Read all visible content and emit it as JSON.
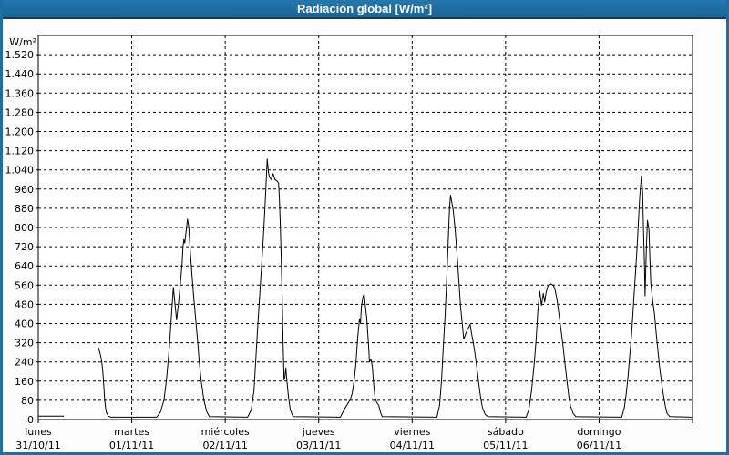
{
  "window": {
    "title": "Radiación global [W/m²]"
  },
  "colors": {
    "titlebar_bg": "#1d6fa3",
    "titlebar_edge": "#103a55",
    "titlebar_text": "#ffffff",
    "frame_border": "#1d6fa3",
    "figure_bg": "#fcfdfc",
    "plot_bg": "#ffffff",
    "line_color": "#000000",
    "grid_color": "#000000",
    "text_color": "#000000"
  },
  "chart_data": {
    "type": "line",
    "title": "Radiación global [W/m²]",
    "ylabel": "W/m²",
    "grid": "dashed",
    "legend": "none",
    "y_axis": {
      "min": 0,
      "max": 1600,
      "tick_step": 80,
      "unit": "W/m²",
      "tick_labels": [
        "0",
        "80",
        "160",
        "240",
        "320",
        "400",
        "480",
        "560",
        "640",
        "720",
        "800",
        "880",
        "960",
        "1.040",
        "1.120",
        "1.200",
        "1.280",
        "1.360",
        "1.440",
        "1.520"
      ]
    },
    "x_axis": {
      "span_days": 7,
      "days": [
        {
          "label": "lunes",
          "date": "31/10/11"
        },
        {
          "label": "martes",
          "date": "01/11/11"
        },
        {
          "label": "miércoles",
          "date": "02/11/11"
        },
        {
          "label": "jueves",
          "date": "03/11/11"
        },
        {
          "label": "viernes",
          "date": "04/11/11"
        },
        {
          "label": "sábado",
          "date": "05/11/11"
        },
        {
          "label": "domingo",
          "date": "06/11/11"
        }
      ]
    },
    "series": [
      {
        "name": "Radiación global",
        "unit": "W/m²",
        "points": [
          [
            0.0,
            14
          ],
          [
            0.273,
            14
          ],
          null,
          [
            0.643,
            300
          ],
          [
            0.66,
            278
          ],
          [
            0.672,
            258
          ],
          [
            0.682,
            230
          ],
          [
            0.691,
            195
          ],
          [
            0.701,
            140
          ],
          [
            0.711,
            80
          ],
          [
            0.721,
            45
          ],
          [
            0.73,
            28
          ],
          [
            0.75,
            14
          ],
          [
            0.779,
            10
          ],
          [
            1.266,
            10
          ],
          [
            1.305,
            30
          ],
          [
            1.344,
            80
          ],
          [
            1.373,
            170
          ],
          [
            1.402,
            300
          ],
          [
            1.431,
            470
          ],
          [
            1.446,
            550
          ],
          [
            1.46,
            490
          ],
          [
            1.48,
            415
          ],
          [
            1.499,
            480
          ],
          [
            1.519,
            560
          ],
          [
            1.538,
            650
          ],
          [
            1.548,
            720
          ],
          [
            1.558,
            750
          ],
          [
            1.568,
            735
          ],
          [
            1.577,
            770
          ],
          [
            1.597,
            835
          ],
          [
            1.611,
            800
          ],
          [
            1.626,
            700
          ],
          [
            1.645,
            600
          ],
          [
            1.665,
            500
          ],
          [
            1.684,
            420
          ],
          [
            1.704,
            330
          ],
          [
            1.723,
            240
          ],
          [
            1.743,
            160
          ],
          [
            1.772,
            80
          ],
          [
            1.801,
            35
          ],
          [
            1.831,
            12
          ],
          [
            2.239,
            10
          ],
          [
            2.278,
            40
          ],
          [
            2.308,
            120
          ],
          [
            2.327,
            250
          ],
          [
            2.347,
            380
          ],
          [
            2.366,
            500
          ],
          [
            2.386,
            620
          ],
          [
            2.405,
            740
          ],
          [
            2.425,
            880
          ],
          [
            2.439,
            1000
          ],
          [
            2.449,
            1085
          ],
          [
            2.463,
            1030
          ],
          [
            2.473,
            1010
          ],
          [
            2.493,
            1000
          ],
          [
            2.512,
            1025
          ],
          [
            2.532,
            1000
          ],
          [
            2.551,
            995
          ],
          [
            2.571,
            985
          ],
          [
            2.58,
            920
          ],
          [
            2.59,
            800
          ],
          [
            2.6,
            660
          ],
          [
            2.61,
            500
          ],
          [
            2.619,
            330
          ],
          [
            2.629,
            165
          ],
          [
            2.639,
            180
          ],
          [
            2.649,
            215
          ],
          [
            2.658,
            170
          ],
          [
            2.678,
            90
          ],
          [
            2.697,
            40
          ],
          [
            2.726,
            12
          ],
          [
            3.233,
            10
          ],
          [
            3.271,
            40
          ],
          [
            3.301,
            60
          ],
          [
            3.34,
            85
          ],
          [
            3.359,
            110
          ],
          [
            3.379,
            160
          ],
          [
            3.398,
            230
          ],
          [
            3.418,
            345
          ],
          [
            3.437,
            420
          ],
          [
            3.447,
            400
          ],
          [
            3.457,
            470
          ],
          [
            3.476,
            515
          ],
          [
            3.486,
            522
          ],
          [
            3.5,
            470
          ],
          [
            3.515,
            420
          ],
          [
            3.53,
            330
          ],
          [
            3.544,
            240
          ],
          [
            3.559,
            252
          ],
          [
            3.574,
            220
          ],
          [
            3.588,
            150
          ],
          [
            3.603,
            90
          ],
          [
            3.622,
            70
          ],
          [
            3.642,
            60
          ],
          [
            3.661,
            30
          ],
          [
            3.68,
            12
          ],
          [
            4.265,
            10
          ],
          [
            4.294,
            60
          ],
          [
            4.314,
            160
          ],
          [
            4.333,
            300
          ],
          [
            4.352,
            430
          ],
          [
            4.372,
            600
          ],
          [
            4.386,
            750
          ],
          [
            4.401,
            890
          ],
          [
            4.411,
            935
          ],
          [
            4.426,
            900
          ],
          [
            4.44,
            870
          ],
          [
            4.46,
            790
          ],
          [
            4.479,
            695
          ],
          [
            4.499,
            580
          ],
          [
            4.518,
            470
          ],
          [
            4.538,
            390
          ],
          [
            4.552,
            335
          ],
          [
            4.567,
            350
          ],
          [
            4.586,
            370
          ],
          [
            4.606,
            385
          ],
          [
            4.62,
            397
          ],
          [
            4.635,
            360
          ],
          [
            4.654,
            320
          ],
          [
            4.674,
            270
          ],
          [
            4.694,
            210
          ],
          [
            4.713,
            150
          ],
          [
            4.733,
            90
          ],
          [
            4.752,
            50
          ],
          [
            4.781,
            22
          ],
          [
            4.81,
            12
          ],
          [
            5.219,
            10
          ],
          [
            5.248,
            40
          ],
          [
            5.277,
            120
          ],
          [
            5.306,
            230
          ],
          [
            5.326,
            330
          ],
          [
            5.345,
            450
          ],
          [
            5.365,
            535
          ],
          [
            5.384,
            475
          ],
          [
            5.403,
            525
          ],
          [
            5.418,
            490
          ],
          [
            5.433,
            530
          ],
          [
            5.452,
            555
          ],
          [
            5.481,
            565
          ],
          [
            5.51,
            560
          ],
          [
            5.53,
            540
          ],
          [
            5.549,
            500
          ],
          [
            5.578,
            420
          ],
          [
            5.597,
            360
          ],
          [
            5.617,
            300
          ],
          [
            5.636,
            230
          ],
          [
            5.656,
            165
          ],
          [
            5.675,
            100
          ],
          [
            5.695,
            55
          ],
          [
            5.724,
            25
          ],
          [
            5.753,
            12
          ],
          [
            6.242,
            10
          ],
          [
            6.271,
            50
          ],
          [
            6.291,
            110
          ],
          [
            6.31,
            180
          ],
          [
            6.329,
            270
          ],
          [
            6.349,
            360
          ],
          [
            6.368,
            480
          ],
          [
            6.388,
            600
          ],
          [
            6.407,
            720
          ],
          [
            6.422,
            830
          ],
          [
            6.436,
            930
          ],
          [
            6.453,
            1015
          ],
          [
            6.466,
            950
          ],
          [
            6.475,
            800
          ],
          [
            6.485,
            650
          ],
          [
            6.492,
            515
          ],
          [
            6.505,
            700
          ],
          [
            6.517,
            830
          ],
          [
            6.534,
            790
          ],
          [
            6.543,
            680
          ],
          [
            6.553,
            570
          ],
          [
            6.572,
            500
          ],
          [
            6.592,
            440
          ],
          [
            6.611,
            360
          ],
          [
            6.631,
            280
          ],
          [
            6.65,
            210
          ],
          [
            6.67,
            150
          ],
          [
            6.689,
            100
          ],
          [
            6.709,
            55
          ],
          [
            6.728,
            25
          ],
          [
            6.757,
            12
          ],
          [
            6.99,
            10
          ]
        ]
      }
    ]
  }
}
